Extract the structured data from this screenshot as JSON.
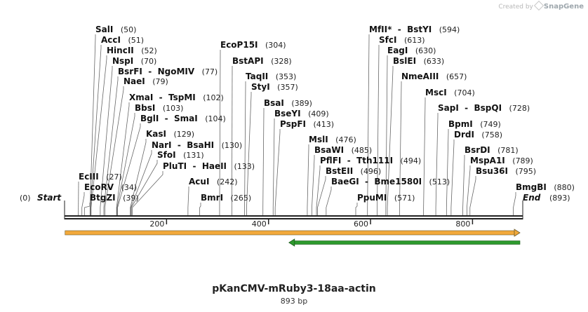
{
  "credit": {
    "prefix": "Created by",
    "brand": "SnapGene"
  },
  "plasmid": {
    "name": "pKanCMV-mRuby3-18aa-actin",
    "length_label": "893 bp",
    "length_bp": 893
  },
  "colors": {
    "backbone": "#222222",
    "orange_feature": "#f2a93b",
    "green_feature": "#2e9a2e",
    "label_line": "#666666"
  },
  "ends": {
    "start": {
      "name": "Start",
      "pos": 0,
      "pos_label": "(0)"
    },
    "end": {
      "name": "End",
      "pos": 893,
      "pos_label": "(893)"
    }
  },
  "ruler": {
    "ticks": [
      {
        "pos": 200,
        "label": "200"
      },
      {
        "pos": 400,
        "label": "400"
      },
      {
        "pos": 600,
        "label": "600"
      },
      {
        "pos": 800,
        "label": "800"
      }
    ]
  },
  "features": [
    {
      "name": "orange feature arrow",
      "start": 1,
      "end": 893,
      "direction": "forward",
      "color": "#f2a93b"
    },
    {
      "name": "green feature arrow",
      "start": 440,
      "end": 893,
      "direction": "reverse",
      "color": "#2e9a2e"
    }
  ],
  "enzymes": [
    {
      "names": [
        "SalI"
      ],
      "pos_label": "(50)",
      "pos": 50
    },
    {
      "names": [
        "AccI"
      ],
      "pos_label": "(51)",
      "pos": 51
    },
    {
      "names": [
        "HincII"
      ],
      "pos_label": "(52)",
      "pos": 52
    },
    {
      "names": [
        "NspI"
      ],
      "pos_label": "(70)",
      "pos": 70
    },
    {
      "names": [
        "BsrFI",
        "NgoMIV"
      ],
      "pos_label": "(77)",
      "pos": 77
    },
    {
      "names": [
        "NaeI"
      ],
      "pos_label": "(79)",
      "pos": 79
    },
    {
      "names": [
        "XmaI",
        "TspMI"
      ],
      "pos_label": "(102)",
      "pos": 102
    },
    {
      "names": [
        "BbsI"
      ],
      "pos_label": "(103)",
      "pos": 103
    },
    {
      "names": [
        "BglI",
        "SmaI"
      ],
      "pos_label": "(104)",
      "pos": 104
    },
    {
      "names": [
        "KasI"
      ],
      "pos_label": "(129)",
      "pos": 129
    },
    {
      "names": [
        "NarI",
        "BsaHI"
      ],
      "pos_label": "(130)",
      "pos": 130
    },
    {
      "names": [
        "SfoI"
      ],
      "pos_label": "(131)",
      "pos": 131
    },
    {
      "names": [
        "PluTI",
        "HaeII"
      ],
      "pos_label": "(133)",
      "pos": 133
    },
    {
      "names": [
        "EcIII"
      ],
      "pos_label": "(27)",
      "pos": 27
    },
    {
      "names": [
        "EcoRV"
      ],
      "pos_label": "(34)",
      "pos": 34
    },
    {
      "names": [
        "BtgZI"
      ],
      "pos_label": "(39)",
      "pos": 39
    },
    {
      "names": [
        "EcoP15I"
      ],
      "pos_label": "(304)",
      "pos": 304
    },
    {
      "names": [
        "BstAPI"
      ],
      "pos_label": "(328)",
      "pos": 328
    },
    {
      "names": [
        "TaqII"
      ],
      "pos_label": "(353)",
      "pos": 353
    },
    {
      "names": [
        "StyI"
      ],
      "pos_label": "(357)",
      "pos": 357
    },
    {
      "names": [
        "BsaI"
      ],
      "pos_label": "(389)",
      "pos": 389
    },
    {
      "names": [
        "BseYI"
      ],
      "pos_label": "(409)",
      "pos": 409
    },
    {
      "names": [
        "PspFI"
      ],
      "pos_label": "(413)",
      "pos": 413
    },
    {
      "names": [
        "AcuI"
      ],
      "pos_label": "(242)",
      "pos": 242
    },
    {
      "names": [
        "BmrI"
      ],
      "pos_label": "(265)",
      "pos": 265
    },
    {
      "names": [
        "MslI"
      ],
      "pos_label": "(476)",
      "pos": 476
    },
    {
      "names": [
        "BsaWI"
      ],
      "pos_label": "(485)",
      "pos": 485
    },
    {
      "names": [
        "PflFI",
        "Tth111I"
      ],
      "pos_label": "(494)",
      "pos": 494
    },
    {
      "names": [
        "BstEII"
      ],
      "pos_label": "(496)",
      "pos": 496
    },
    {
      "names": [
        "BaeGI",
        "Bme1580I"
      ],
      "pos_label": "(513)",
      "pos": 513
    },
    {
      "names": [
        "PpuMI"
      ],
      "pos_label": "(571)",
      "pos": 571
    },
    {
      "names": [
        "MfII*",
        "BstYI"
      ],
      "pos_label": "(594)",
      "pos": 594
    },
    {
      "names": [
        "SfcI"
      ],
      "pos_label": "(613)",
      "pos": 613
    },
    {
      "names": [
        "EagI"
      ],
      "pos_label": "(630)",
      "pos": 630
    },
    {
      "names": [
        "BslEI"
      ],
      "pos_label": "(633)",
      "pos": 633
    },
    {
      "names": [
        "NmeAIII"
      ],
      "pos_label": "(657)",
      "pos": 657
    },
    {
      "names": [
        "MscI"
      ],
      "pos_label": "(704)",
      "pos": 704
    },
    {
      "names": [
        "SapI",
        "BspQI"
      ],
      "pos_label": "(728)",
      "pos": 728
    },
    {
      "names": [
        "BpmI"
      ],
      "pos_label": "(749)",
      "pos": 749
    },
    {
      "names": [
        "DrdI"
      ],
      "pos_label": "(758)",
      "pos": 758
    },
    {
      "names": [
        "BsrDI"
      ],
      "pos_label": "(781)",
      "pos": 781
    },
    {
      "names": [
        "MspA1I"
      ],
      "pos_label": "(789)",
      "pos": 789
    },
    {
      "names": [
        "Bsu36I"
      ],
      "pos_label": "(795)",
      "pos": 795
    },
    {
      "names": [
        "BmgBI"
      ],
      "pos_label": "(880)",
      "pos": 880
    }
  ]
}
